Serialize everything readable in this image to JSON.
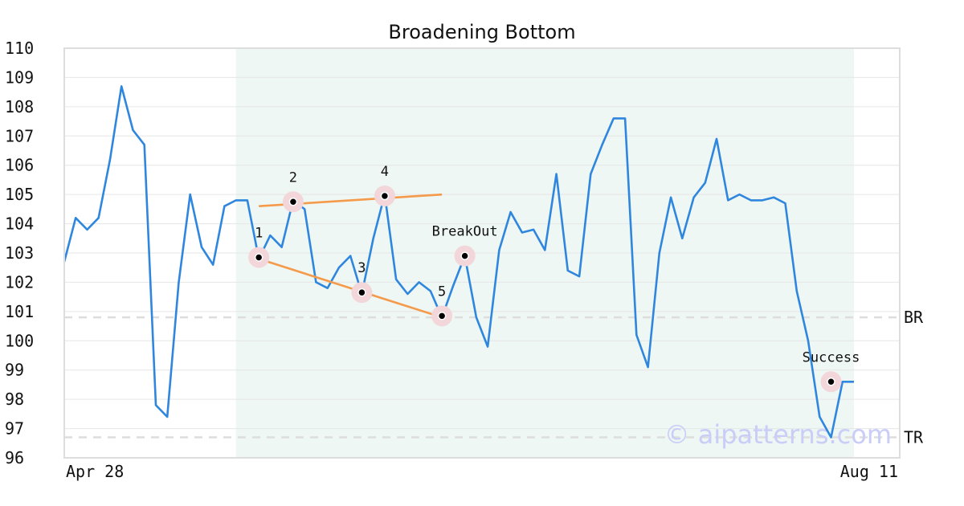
{
  "chart_data": {
    "type": "line",
    "title": "Broadening Bottom",
    "x_start_label": "Apr 28",
    "x_end_label": "Aug 11",
    "ylim": [
      96,
      110
    ],
    "yticks": [
      "96",
      "97",
      "98",
      "99",
      "100",
      "101",
      "102",
      "103",
      "104",
      "105",
      "106",
      "107",
      "108",
      "109",
      "110"
    ],
    "grid": true,
    "pattern_region": {
      "start_index": 15,
      "end_index": 69
    },
    "series": [
      {
        "color": "#2f86de",
        "values": [
          102.7,
          104.2,
          103.8,
          104.2,
          106.2,
          108.7,
          107.2,
          106.7,
          97.8,
          97.4,
          102.0,
          105.0,
          103.2,
          102.6,
          104.6,
          104.8,
          104.8,
          102.8,
          103.6,
          103.2,
          104.8,
          104.5,
          102.0,
          101.8,
          102.5,
          102.9,
          101.6,
          103.5,
          105.0,
          102.1,
          101.6,
          102.0,
          101.7,
          100.8,
          101.9,
          102.9,
          100.8,
          99.8,
          103.1,
          104.4,
          103.7,
          103.8,
          103.1,
          105.7,
          102.4,
          102.2,
          105.7,
          106.7,
          107.6,
          107.6,
          100.2,
          99.1,
          103.0,
          104.9,
          103.5,
          104.9,
          105.4,
          106.9,
          104.8,
          105.0,
          104.8,
          104.8,
          104.9,
          104.7,
          101.7,
          100.0,
          97.4,
          96.7,
          98.6,
          98.6
        ]
      }
    ],
    "trendlines": [
      {
        "color": "#f59a4a",
        "from": [
          17,
          102.8
        ],
        "to": [
          33,
          100.8
        ]
      },
      {
        "color": "#f59a4a",
        "from": [
          17,
          104.6
        ],
        "to": [
          33,
          105.0
        ]
      }
    ],
    "reference_lines": [
      {
        "label": "BR",
        "value": 100.8
      },
      {
        "label": "TR",
        "value": 96.7
      }
    ],
    "annotations": [
      {
        "label": "1",
        "index": 17,
        "value": 102.85,
        "label_pos": "above"
      },
      {
        "label": "2",
        "index": 20,
        "value": 104.75,
        "label_pos": "above"
      },
      {
        "label": "3",
        "index": 26,
        "value": 101.65,
        "label_pos": "above"
      },
      {
        "label": "4",
        "index": 28,
        "value": 104.95,
        "label_pos": "above"
      },
      {
        "label": "5",
        "index": 33,
        "value": 100.85,
        "label_pos": "above"
      },
      {
        "label": "BreakOut",
        "index": 35,
        "value": 102.9,
        "label_pos": "above"
      },
      {
        "label": "Success",
        "index": 67,
        "value": 98.6,
        "label_pos": "above",
        "x_offset": 1
      }
    ]
  },
  "watermark": "© aipatterns.com"
}
